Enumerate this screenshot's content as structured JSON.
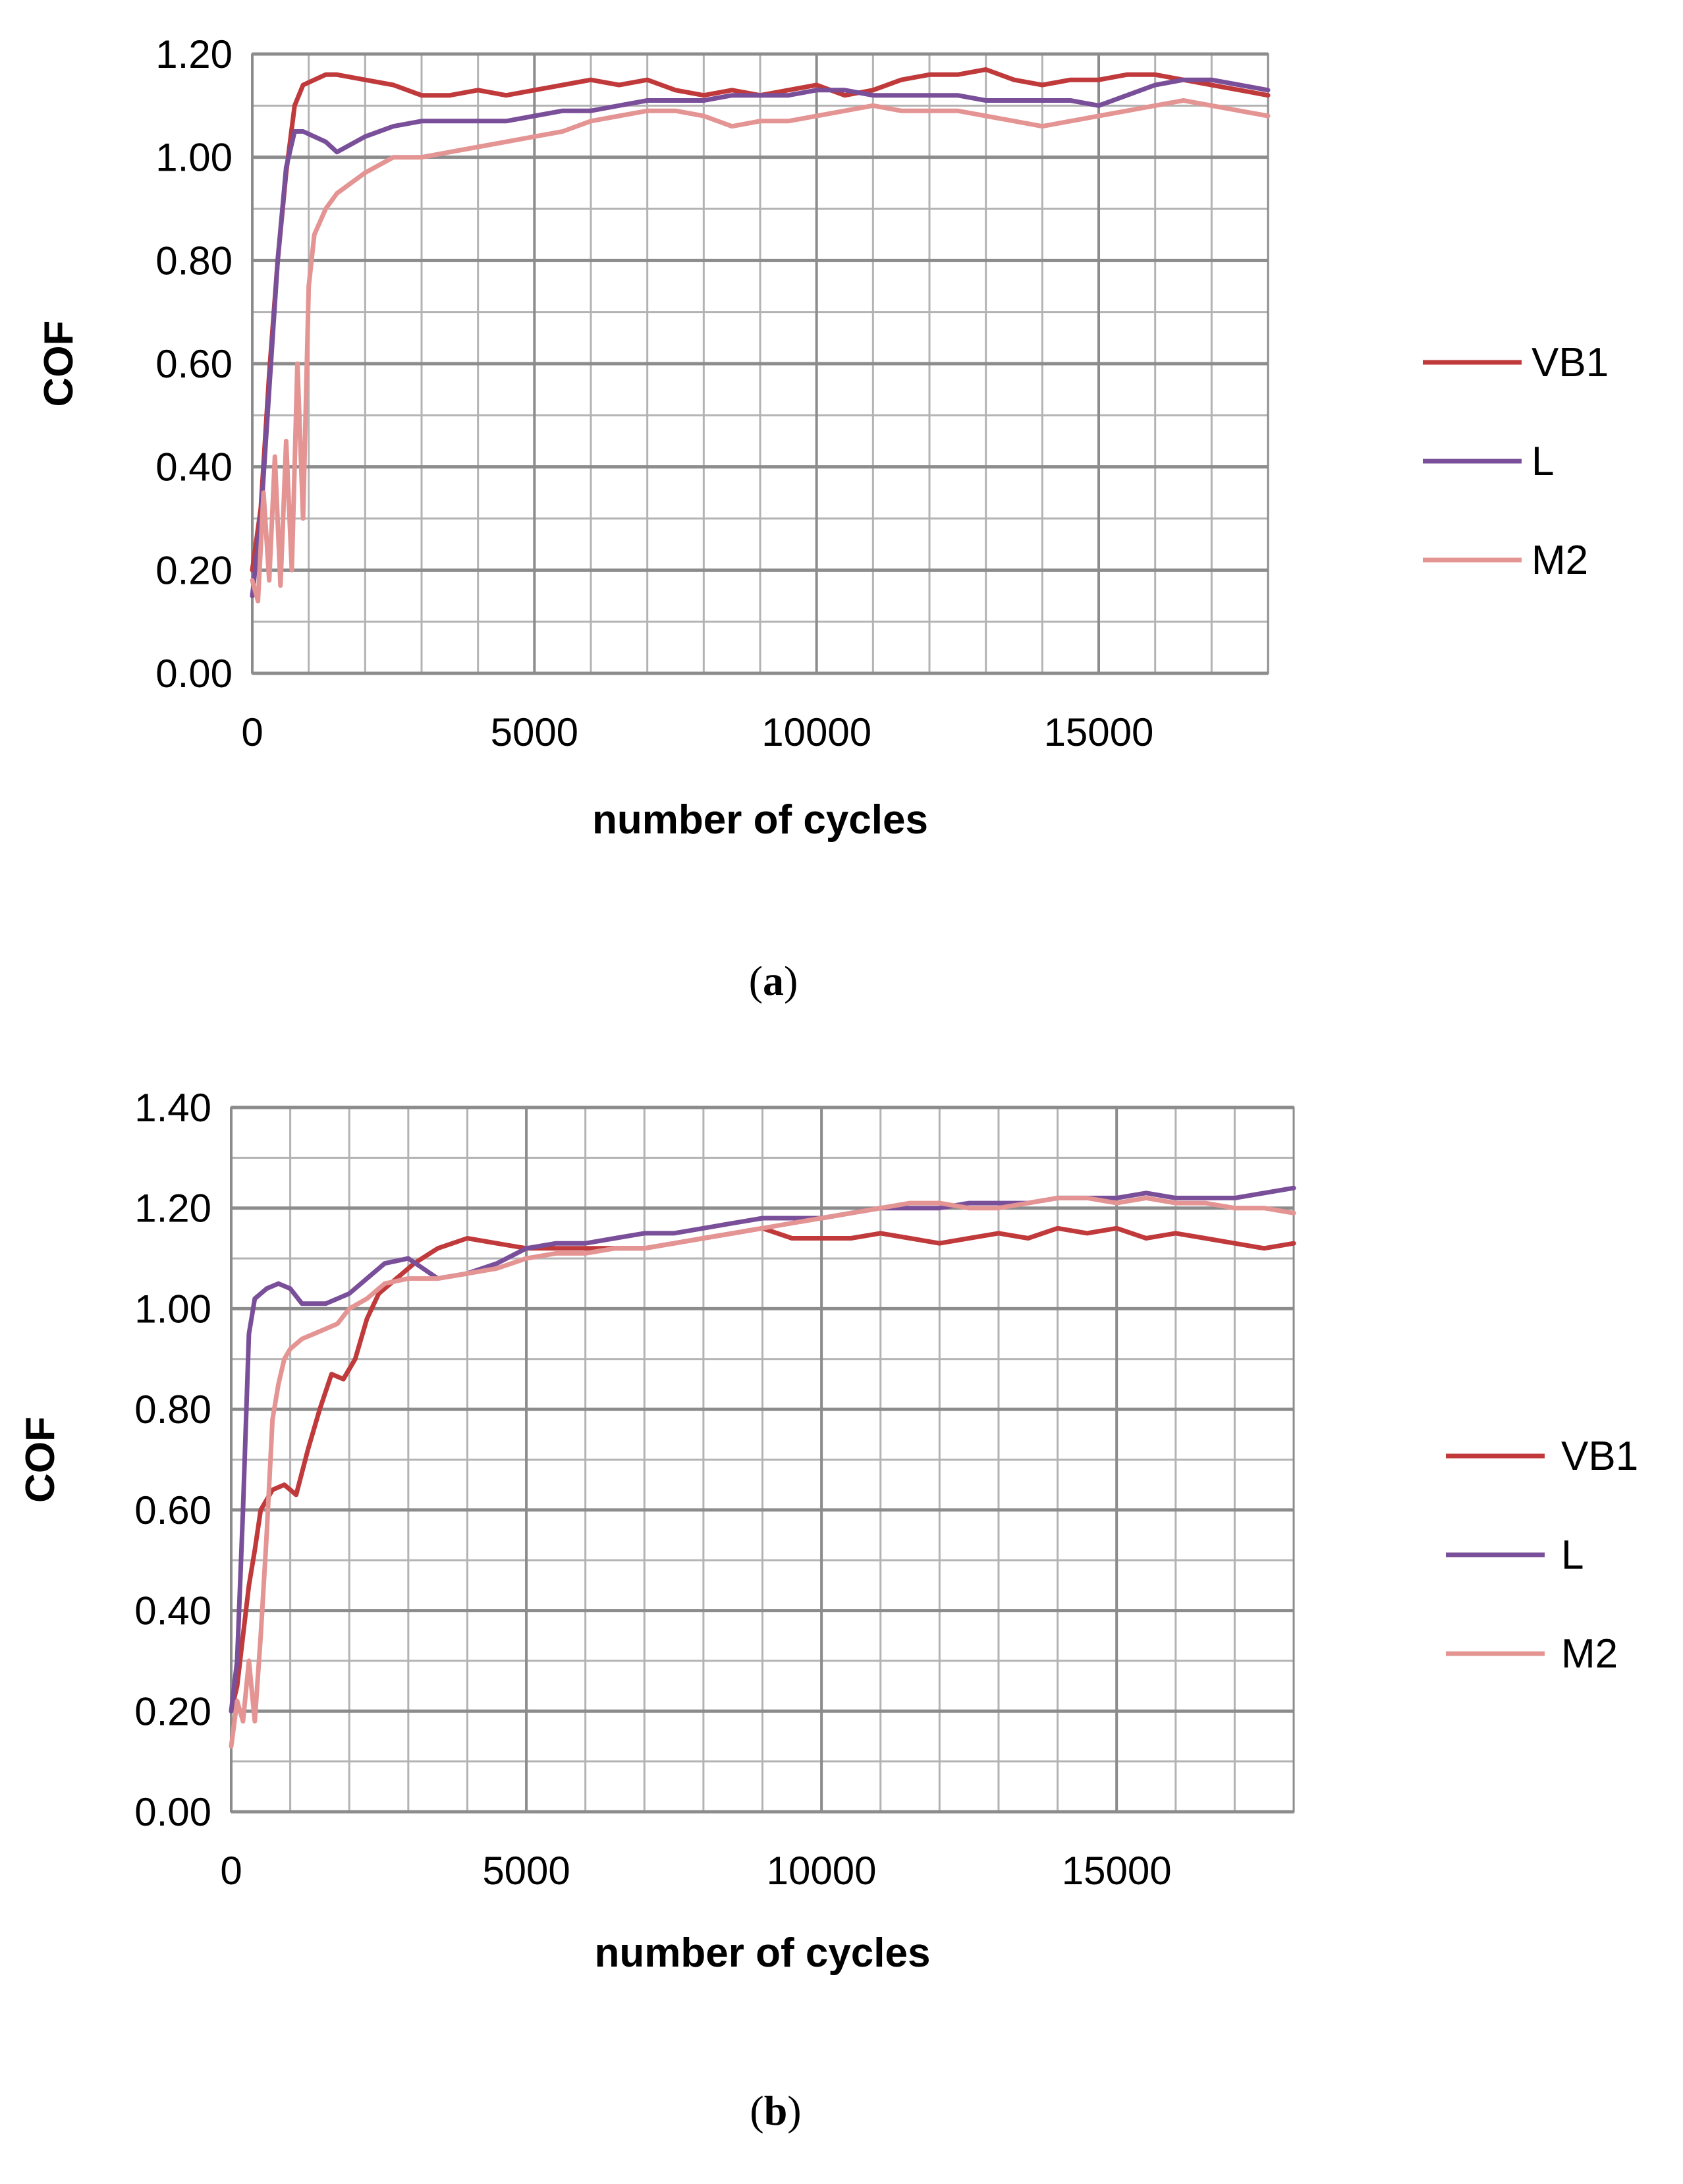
{
  "chart_data": [
    {
      "type": "line",
      "panel": "a",
      "panel_prefix": "(",
      "panel_suffix": ")",
      "title": "",
      "xlabel": "number of cycles",
      "ylabel": "COF",
      "xlim": [
        0,
        18000
      ],
      "ylim": [
        0,
        1.2
      ],
      "x_ticks": [
        0,
        5000,
        10000,
        15000
      ],
      "x_tick_labels": [
        "0",
        "5000",
        "10000",
        "15000"
      ],
      "y_ticks": [
        0,
        0.2,
        0.4,
        0.6,
        0.8,
        1.0,
        1.2
      ],
      "y_tick_labels": [
        "0.00",
        "0.20",
        "0.40",
        "0.60",
        "0.80",
        "1.00",
        "1.20"
      ],
      "x_minor_step": 1000,
      "y_minor_step": 0.1,
      "grid": true,
      "legend_position": "right",
      "series": [
        {
          "name": "VB1",
          "color": "#C0393B",
          "x": [
            0,
            150,
            300,
            450,
            600,
            750,
            900,
            1100,
            1300,
            1500,
            2000,
            2500,
            3000,
            3500,
            4000,
            4500,
            5000,
            5500,
            6000,
            6500,
            7000,
            7500,
            8000,
            8500,
            9000,
            9500,
            10000,
            10500,
            11000,
            11500,
            12000,
            12500,
            13000,
            13500,
            14000,
            14500,
            15000,
            15500,
            16000,
            16500,
            17000,
            17500,
            18000
          ],
          "values": [
            0.2,
            0.32,
            0.58,
            0.8,
            0.97,
            1.1,
            1.14,
            1.15,
            1.16,
            1.16,
            1.15,
            1.14,
            1.12,
            1.12,
            1.13,
            1.12,
            1.13,
            1.14,
            1.15,
            1.14,
            1.15,
            1.13,
            1.12,
            1.13,
            1.12,
            1.13,
            1.14,
            1.12,
            1.13,
            1.15,
            1.16,
            1.16,
            1.17,
            1.15,
            1.14,
            1.15,
            1.15,
            1.16,
            1.16,
            1.15,
            1.14,
            1.13,
            1.12
          ]
        },
        {
          "name": "L",
          "color": "#7A4F9A",
          "x": [
            0,
            150,
            300,
            450,
            600,
            750,
            900,
            1100,
            1300,
            1500,
            2000,
            2500,
            3000,
            3500,
            4000,
            4500,
            5000,
            5500,
            6000,
            6500,
            7000,
            7500,
            8000,
            8500,
            9000,
            9500,
            10000,
            10500,
            11000,
            11500,
            12000,
            12500,
            13000,
            13500,
            14000,
            14500,
            15000,
            15500,
            16000,
            16500,
            17000,
            17500,
            18000
          ],
          "values": [
            0.15,
            0.3,
            0.55,
            0.8,
            0.98,
            1.05,
            1.05,
            1.04,
            1.03,
            1.01,
            1.04,
            1.06,
            1.07,
            1.07,
            1.07,
            1.07,
            1.08,
            1.09,
            1.09,
            1.1,
            1.11,
            1.11,
            1.11,
            1.12,
            1.12,
            1.12,
            1.13,
            1.13,
            1.12,
            1.12,
            1.12,
            1.12,
            1.11,
            1.11,
            1.11,
            1.11,
            1.1,
            1.12,
            1.14,
            1.15,
            1.15,
            1.14,
            1.13
          ]
        },
        {
          "name": "M2",
          "color": "#E39493",
          "x": [
            0,
            100,
            200,
            300,
            400,
            500,
            600,
            700,
            800,
            900,
            1000,
            1100,
            1300,
            1500,
            2000,
            2500,
            3000,
            3500,
            4000,
            4500,
            5000,
            5500,
            6000,
            6500,
            7000,
            7500,
            8000,
            8500,
            9000,
            9500,
            10000,
            10500,
            11000,
            11500,
            12000,
            12500,
            13000,
            13500,
            14000,
            14500,
            15000,
            15500,
            16000,
            16500,
            17000,
            17500,
            18000
          ],
          "values": [
            0.18,
            0.14,
            0.35,
            0.18,
            0.42,
            0.17,
            0.45,
            0.2,
            0.6,
            0.3,
            0.75,
            0.85,
            0.9,
            0.93,
            0.97,
            1.0,
            1.0,
            1.01,
            1.02,
            1.03,
            1.04,
            1.05,
            1.07,
            1.08,
            1.09,
            1.09,
            1.08,
            1.06,
            1.07,
            1.07,
            1.08,
            1.09,
            1.1,
            1.09,
            1.09,
            1.09,
            1.08,
            1.07,
            1.06,
            1.07,
            1.08,
            1.09,
            1.1,
            1.11,
            1.1,
            1.09,
            1.08
          ]
        }
      ]
    },
    {
      "type": "line",
      "panel": "b",
      "panel_prefix": "(",
      "panel_suffix": ")",
      "title": "",
      "xlabel": "number of cycles",
      "ylabel": "COF",
      "xlim": [
        0,
        18000
      ],
      "ylim": [
        0,
        1.4
      ],
      "x_ticks": [
        0,
        5000,
        10000,
        15000
      ],
      "x_tick_labels": [
        "0",
        "5000",
        "10000",
        "15000"
      ],
      "y_ticks": [
        0,
        0.2,
        0.4,
        0.6,
        0.8,
        1.0,
        1.2,
        1.4
      ],
      "y_tick_labels": [
        "0.00",
        "0.20",
        "0.40",
        "0.60",
        "0.80",
        "1.00",
        "1.20",
        "1.40"
      ],
      "x_minor_step": 1000,
      "y_minor_step": 0.1,
      "grid": true,
      "legend_position": "right",
      "series": [
        {
          "name": "VB1",
          "color": "#C0393B",
          "x": [
            0,
            100,
            200,
            300,
            400,
            500,
            700,
            900,
            1100,
            1300,
            1500,
            1700,
            1900,
            2100,
            2300,
            2500,
            2800,
            3100,
            3500,
            4000,
            4500,
            5000,
            5500,
            6000,
            6500,
            7000,
            7500,
            8000,
            8500,
            9000,
            9500,
            10000,
            10500,
            11000,
            11500,
            12000,
            12500,
            13000,
            13500,
            14000,
            14500,
            15000,
            15500,
            16000,
            16500,
            17000,
            17500,
            18000
          ],
          "values": [
            0.2,
            0.25,
            0.35,
            0.45,
            0.52,
            0.6,
            0.64,
            0.65,
            0.63,
            0.72,
            0.8,
            0.87,
            0.86,
            0.9,
            0.98,
            1.03,
            1.06,
            1.09,
            1.12,
            1.14,
            1.13,
            1.12,
            1.12,
            1.12,
            1.12,
            1.12,
            1.13,
            1.14,
            1.15,
            1.16,
            1.14,
            1.14,
            1.14,
            1.15,
            1.14,
            1.13,
            1.14,
            1.15,
            1.14,
            1.16,
            1.15,
            1.16,
            1.14,
            1.15,
            1.14,
            1.13,
            1.12,
            1.13
          ]
        },
        {
          "name": "L",
          "color": "#7A4F9A",
          "x": [
            0,
            100,
            200,
            300,
            400,
            600,
            800,
            1000,
            1200,
            1400,
            1600,
            1800,
            2000,
            2300,
            2600,
            3000,
            3500,
            4000,
            4500,
            5000,
            5500,
            6000,
            6500,
            7000,
            7500,
            8000,
            8500,
            9000,
            9500,
            10000,
            10500,
            11000,
            11500,
            12000,
            12500,
            13000,
            13500,
            14000,
            14500,
            15000,
            15500,
            16000,
            16500,
            17000,
            17500,
            18000
          ],
          "values": [
            0.2,
            0.3,
            0.6,
            0.95,
            1.02,
            1.04,
            1.05,
            1.04,
            1.01,
            1.01,
            1.01,
            1.02,
            1.03,
            1.06,
            1.09,
            1.1,
            1.06,
            1.07,
            1.09,
            1.12,
            1.13,
            1.13,
            1.14,
            1.15,
            1.15,
            1.16,
            1.17,
            1.18,
            1.18,
            1.18,
            1.19,
            1.2,
            1.2,
            1.2,
            1.21,
            1.21,
            1.21,
            1.22,
            1.22,
            1.22,
            1.23,
            1.22,
            1.22,
            1.22,
            1.23,
            1.24
          ]
        },
        {
          "name": "M2",
          "color": "#E39493",
          "x": [
            0,
            100,
            200,
            300,
            400,
            500,
            600,
            700,
            800,
            900,
            1000,
            1200,
            1400,
            1600,
            1800,
            2000,
            2300,
            2600,
            3000,
            3500,
            4000,
            4500,
            5000,
            5500,
            6000,
            6500,
            7000,
            7500,
            8000,
            8500,
            9000,
            9500,
            10000,
            10500,
            11000,
            11500,
            12000,
            12500,
            13000,
            13500,
            14000,
            14500,
            15000,
            15500,
            16000,
            16500,
            17000,
            17500,
            18000
          ],
          "values": [
            0.13,
            0.22,
            0.18,
            0.3,
            0.18,
            0.35,
            0.55,
            0.78,
            0.85,
            0.9,
            0.92,
            0.94,
            0.95,
            0.96,
            0.97,
            1.0,
            1.02,
            1.05,
            1.06,
            1.06,
            1.07,
            1.08,
            1.1,
            1.11,
            1.11,
            1.12,
            1.12,
            1.13,
            1.14,
            1.15,
            1.16,
            1.17,
            1.18,
            1.19,
            1.2,
            1.21,
            1.21,
            1.2,
            1.2,
            1.21,
            1.22,
            1.22,
            1.21,
            1.22,
            1.21,
            1.21,
            1.2,
            1.2,
            1.19
          ]
        }
      ]
    }
  ]
}
